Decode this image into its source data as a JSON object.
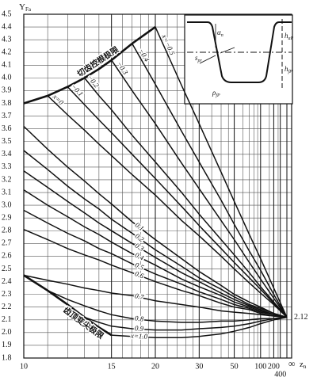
{
  "chart_data": {
    "type": "line",
    "y_label": "Y",
    "y_label_sub": "Fa",
    "x_label": "z",
    "x_label_sub": "n",
    "x_scale": "reciprocal",
    "x": [
      10,
      11,
      12,
      13,
      14,
      15,
      17,
      20,
      25,
      30,
      40,
      50,
      70,
      100,
      200,
      "∞"
    ],
    "xlim": [
      10,
      "∞"
    ],
    "xticks": [
      10,
      15,
      20,
      30,
      50,
      100,
      200,
      400,
      "∞"
    ],
    "xgrid": [
      11,
      12,
      13,
      14,
      16,
      17,
      18,
      19,
      22,
      24,
      26,
      28,
      35,
      40,
      45,
      60,
      70,
      80,
      90,
      150,
      300
    ],
    "ylim": [
      1.8,
      4.5
    ],
    "yticks": [
      1.8,
      1.9,
      {
        "value": 2,
        "label": "2.0"
      },
      2.1,
      2.2,
      2.3,
      2.4,
      2.5,
      2.6,
      2.7,
      2.8,
      2.9,
      {
        "value": 3,
        "label": "3.0"
      },
      3.1,
      3.2,
      3.3,
      3.4,
      3.5,
      3.6,
      3.7,
      3.8,
      3.9,
      {
        "value": 4,
        "label": "4.0"
      },
      4.1,
      4.2,
      4.3,
      4.4,
      4.5
    ],
    "grid": true,
    "color": "#111111",
    "convergence": 2.12,
    "series": [
      {
        "name": "x=−0.5",
        "values": [
          null,
          null,
          null,
          null,
          null,
          null,
          null,
          4.4,
          3.94,
          3.64,
          3.26,
          3.03,
          2.77,
          2.58,
          2.35,
          2.12
        ]
      },
      {
        "name": "−0.4",
        "values": [
          null,
          null,
          null,
          null,
          null,
          null,
          4.27,
          3.95,
          3.58,
          3.34,
          3.04,
          2.85,
          2.64,
          2.49,
          2.3,
          2.12
        ]
      },
      {
        "name": "−0.3",
        "values": [
          null,
          null,
          null,
          null,
          null,
          4.14,
          3.9,
          3.64,
          3.33,
          3.13,
          2.88,
          2.73,
          2.55,
          2.42,
          2.27,
          2.12
        ]
      },
      {
        "name": "−0.2",
        "values": [
          null,
          null,
          null,
          4.0,
          3.86,
          3.75,
          3.55,
          3.34,
          3.1,
          2.93,
          2.73,
          2.61,
          2.47,
          2.36,
          2.24,
          2.12
        ]
      },
      {
        "name": "−0.1",
        "values": [
          null,
          null,
          3.93,
          3.79,
          3.67,
          3.57,
          3.4,
          3.21,
          2.99,
          2.84,
          2.66,
          2.55,
          2.43,
          2.34,
          2.23,
          2.12
        ]
      },
      {
        "name": "x=0",
        "values": [
          null,
          3.86,
          3.71,
          3.59,
          3.48,
          3.39,
          3.24,
          3.08,
          2.88,
          2.76,
          2.6,
          2.5,
          2.39,
          2.31,
          2.22,
          2.12
        ]
      },
      {
        "name": "0.1",
        "values": [
          3.62,
          3.44,
          3.3,
          3.19,
          3.09,
          3.01,
          2.87,
          2.73,
          2.58,
          2.48,
          2.37,
          2.3,
          2.24,
          2.2,
          2.15,
          2.12
        ]
      },
      {
        "name": "0.2",
        "values": [
          3.43,
          3.28,
          3.15,
          3.05,
          2.97,
          2.89,
          2.78,
          2.65,
          2.52,
          2.43,
          2.34,
          2.28,
          2.22,
          2.19,
          2.15,
          2.12
        ]
      },
      {
        "name": "0.3",
        "values": [
          3.27,
          3.14,
          3.03,
          2.94,
          2.86,
          2.8,
          2.7,
          2.59,
          2.47,
          2.4,
          2.31,
          2.26,
          2.21,
          2.18,
          2.14,
          2.12
        ]
      },
      {
        "name": "0.4",
        "values": [
          3.12,
          3.0,
          2.91,
          2.83,
          2.77,
          2.71,
          2.62,
          2.53,
          2.42,
          2.36,
          2.29,
          2.24,
          2.2,
          2.17,
          2.14,
          2.12
        ]
      },
      {
        "name": "0.5",
        "values": [
          2.96,
          2.86,
          2.78,
          2.72,
          2.66,
          2.62,
          2.54,
          2.46,
          2.38,
          2.32,
          2.26,
          2.22,
          2.19,
          2.16,
          2.14,
          2.12
        ]
      },
      {
        "name": "0.6",
        "values": [
          2.81,
          2.73,
          2.66,
          2.61,
          2.57,
          2.53,
          2.47,
          2.4,
          2.33,
          2.29,
          2.23,
          2.2,
          2.18,
          2.15,
          2.13,
          2.12
        ]
      },
      {
        "name": "0.7",
        "values": [
          2.45,
          2.41,
          2.38,
          2.35,
          2.33,
          2.31,
          2.29,
          2.25,
          2.22,
          2.2,
          2.17,
          2.16,
          2.15,
          2.14,
          2.13,
          2.12
        ]
      },
      {
        "name": "0.8",
        "values": [
          null,
          2.33,
          2.26,
          2.21,
          2.17,
          2.14,
          2.11,
          2.09,
          2.08,
          2.08,
          2.09,
          2.09,
          2.1,
          2.11,
          2.11,
          2.12
        ]
      },
      {
        "name": "0.9",
        "values": [
          null,
          null,
          null,
          2.12,
          2.08,
          2.05,
          2.03,
          2.02,
          2.02,
          2.03,
          2.04,
          2.05,
          2.07,
          2.09,
          2.11,
          2.12
        ]
      },
      {
        "name": "x=1.0",
        "values": [
          null,
          null,
          null,
          null,
          null,
          1.98,
          1.97,
          1.96,
          1.96,
          1.97,
          1.99,
          2.01,
          2.04,
          2.07,
          2.1,
          2.12
        ]
      }
    ],
    "limits": [
      {
        "name": "切齿控根极限",
        "values": [
          3.8,
          3.86,
          3.93,
          4.0,
          4.07,
          4.14,
          4.27,
          4.4,
          null,
          null,
          null,
          null,
          null,
          null,
          null,
          null
        ]
      },
      {
        "name": "齿顶变尖极限",
        "values": [
          2.45,
          2.33,
          2.22,
          2.12,
          2.04,
          1.98,
          null,
          null,
          null,
          null,
          null,
          null,
          null,
          null,
          null,
          null
        ]
      }
    ],
    "inset": {
      "labels": [
        {
          "main": "α",
          "sub": "n"
        },
        {
          "main": "h",
          "sub": "aP"
        },
        {
          "main": "h",
          "sub": "fP"
        },
        {
          "main": "s",
          "sub": "pr"
        },
        {
          "main": "ρ",
          "sub": "fP"
        }
      ]
    }
  }
}
